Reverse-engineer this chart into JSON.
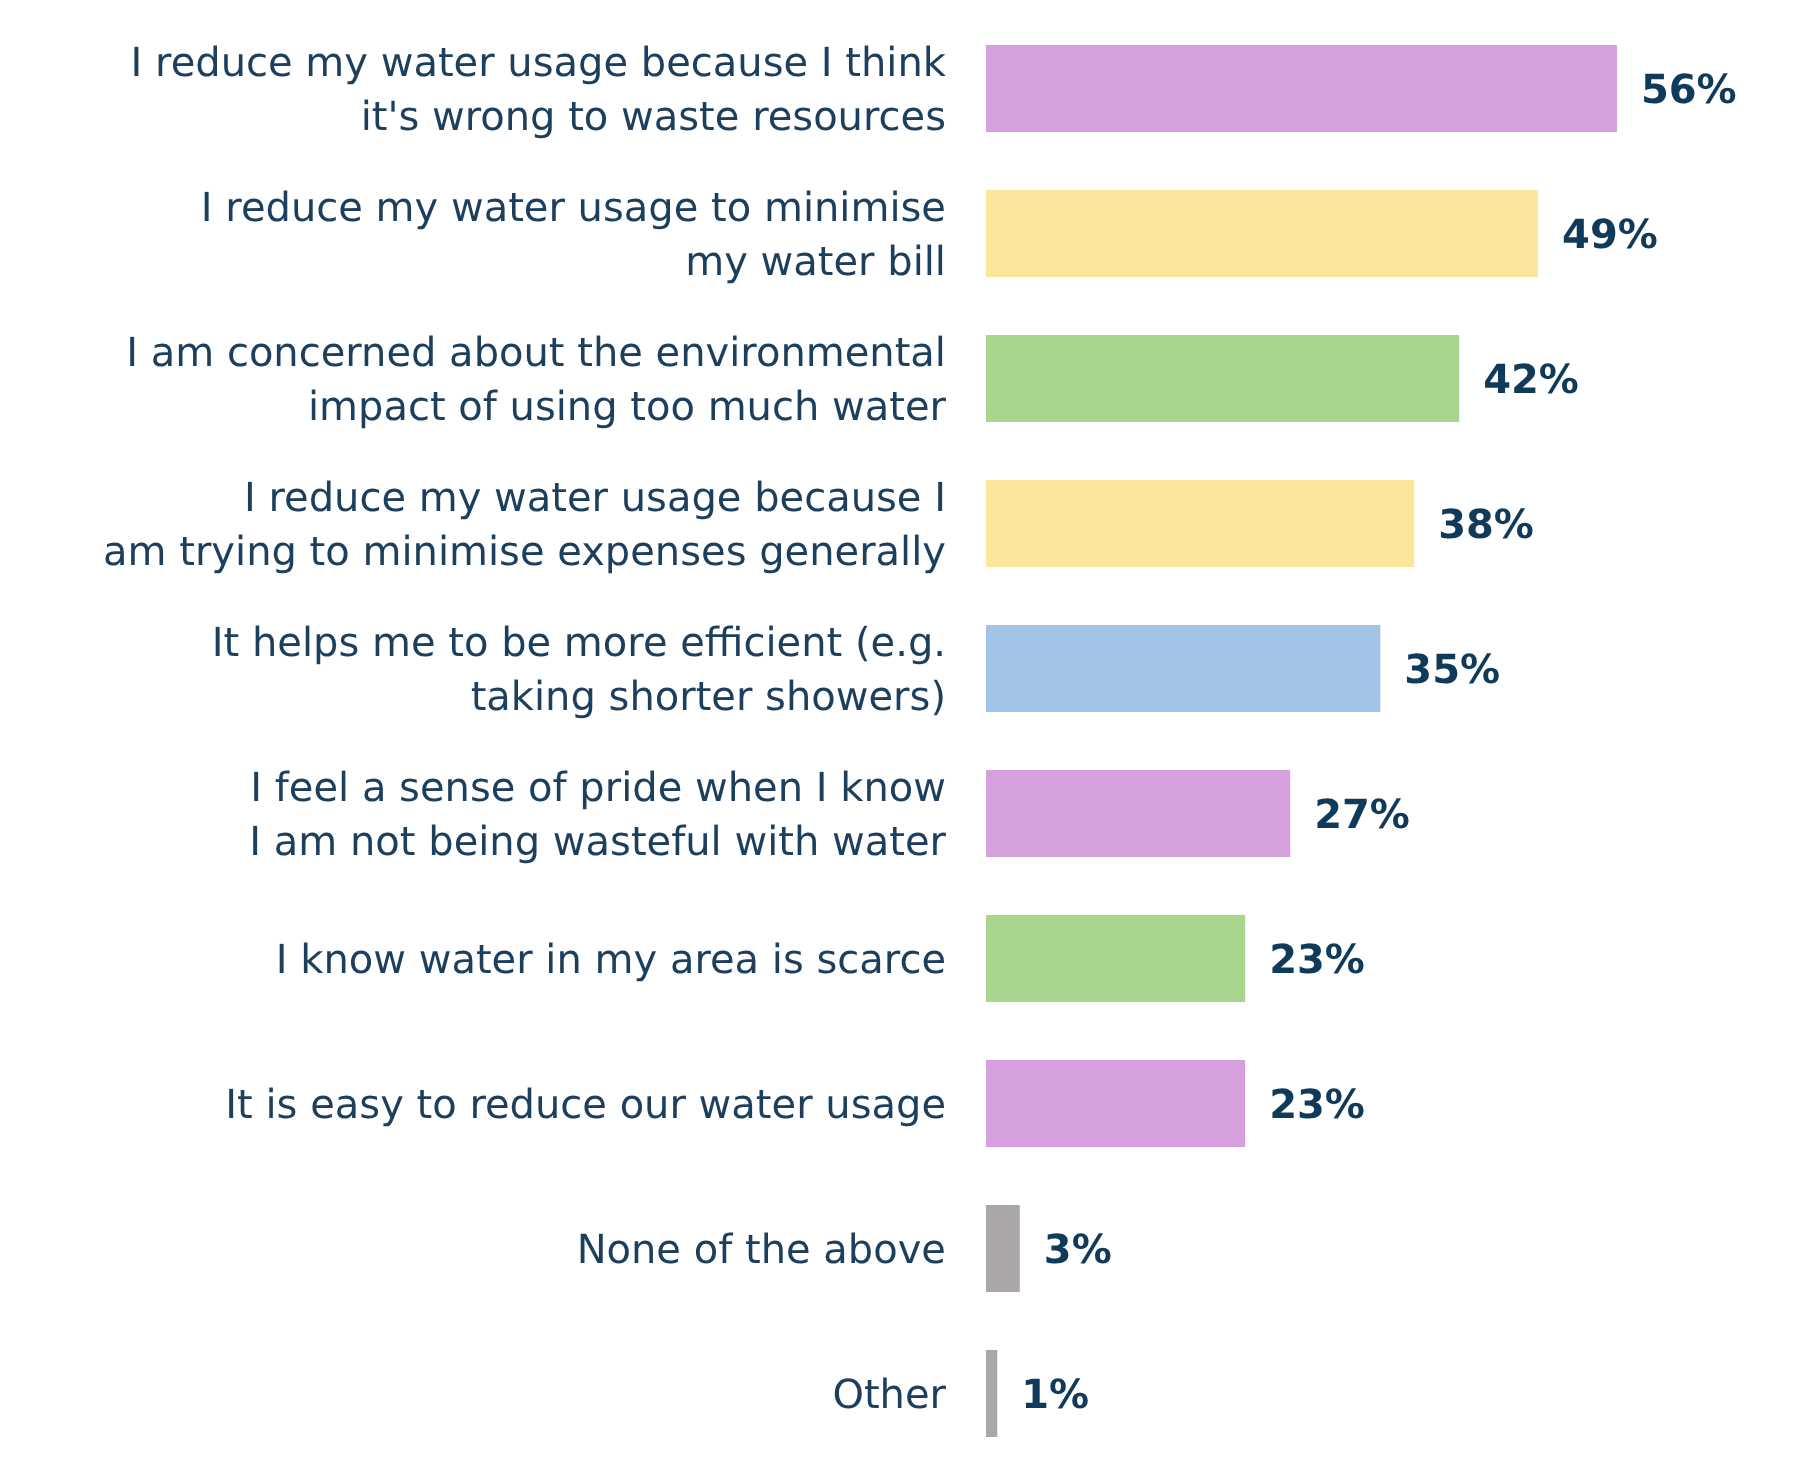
{
  "chart_data": {
    "type": "bar",
    "orientation": "horizontal",
    "categories": [
      "I reduce my water usage because I think\nit's wrong to waste resources",
      "I reduce my water usage to minimise\nmy water bill",
      "I am concerned about the environmental\nimpact of using too much water",
      "I reduce my water usage because I\nam trying to minimise expenses generally",
      "It helps me to be more efficient (e.g.\ntaking shorter showers)",
      "I feel a sense of pride when I know\nI am not being wasteful with water",
      "I know water in my area is scarce",
      "It is easy to reduce our water usage",
      "None of the above",
      "Other"
    ],
    "values": [
      56,
      49,
      42,
      38,
      35,
      27,
      23,
      23,
      3,
      1
    ],
    "value_labels": [
      "56%",
      "49%",
      "42%",
      "38%",
      "35%",
      "27%",
      "23%",
      "23%",
      "3%",
      "1%"
    ],
    "colors": [
      "#d5a0dd",
      "#fde59b",
      "#a9d48d",
      "#fde59b",
      "#a0c3e6",
      "#d5a0dd",
      "#a9d48d",
      "#d5a0dd",
      "#aba7a7",
      "#aba7a7"
    ]
  }
}
